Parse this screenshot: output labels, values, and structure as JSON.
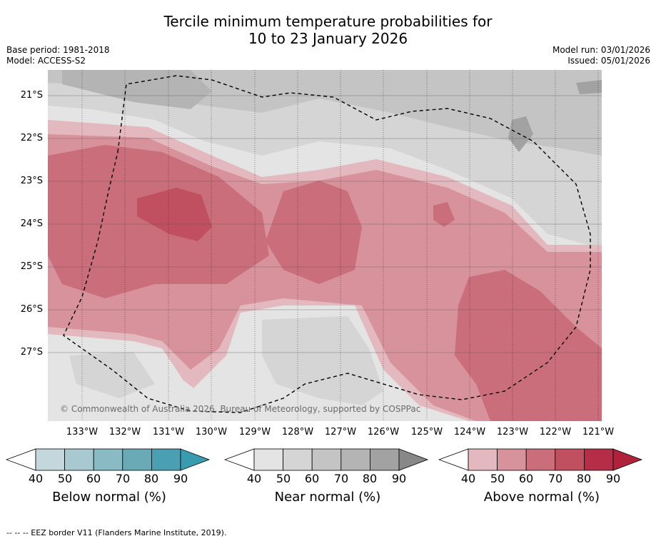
{
  "title_line1": "Tercile minimum temperature probabilities for",
  "title_line2": "10 to 23 January 2026",
  "base_period": "Base period: 1981-2018",
  "model": "Model: ACCESS-S2",
  "model_run": "Model run: 03/01/2026",
  "issued": "Issued: 05/01/2026",
  "copyright": "© Commonwealth of Australia 2026, Bureau of Meteorology, supported by COSPPac",
  "lat_labels": [
    "21°S",
    "22°S",
    "23°S",
    "24°S",
    "25°S",
    "26°S",
    "27°S"
  ],
  "lon_labels": [
    "133°W",
    "132°W",
    "131°W",
    "130°W",
    "129°W",
    "128°W",
    "127°W",
    "126°W",
    "125°W",
    "124°W",
    "123°W",
    "122°W",
    "121°W"
  ],
  "colorbars": [
    {
      "label": "Below normal (%)",
      "ticks": [
        "40",
        "50",
        "60",
        "70",
        "80",
        "90"
      ],
      "colors": [
        "#ffffff",
        "#c3d7dc",
        "#a8c9cf",
        "#8abac3",
        "#6aa9b6",
        "#4aa0b2",
        "#3a9bb0"
      ]
    },
    {
      "label": "Near normal (%)",
      "ticks": [
        "40",
        "50",
        "60",
        "70",
        "80",
        "90"
      ],
      "colors": [
        "#ffffff",
        "#e4e4e4",
        "#d5d5d5",
        "#c4c4c4",
        "#b4b4b4",
        "#a2a2a2",
        "#888888"
      ]
    },
    {
      "label": "Above normal (%)",
      "ticks": [
        "40",
        "50",
        "60",
        "70",
        "80",
        "90"
      ],
      "colors": [
        "#ffffff",
        "#e3b8bf",
        "#d7929c",
        "#cb6e7c",
        "#c0505f",
        "#b52d46",
        "#b0223c"
      ]
    }
  ],
  "footnote": "--  --  -- EEZ border V11 (Flanders Marine Institute, 2019).",
  "colors": {
    "above_40": "#e3b8bf",
    "above_50": "#d7929c",
    "above_60": "#cb6e7c",
    "above_70": "#c0505f",
    "near_40": "#e4e4e4",
    "near_50": "#d5d5d5",
    "near_60": "#c4c4c4",
    "near_70": "#b4b4b4",
    "near_80": "#a2a2a2"
  }
}
